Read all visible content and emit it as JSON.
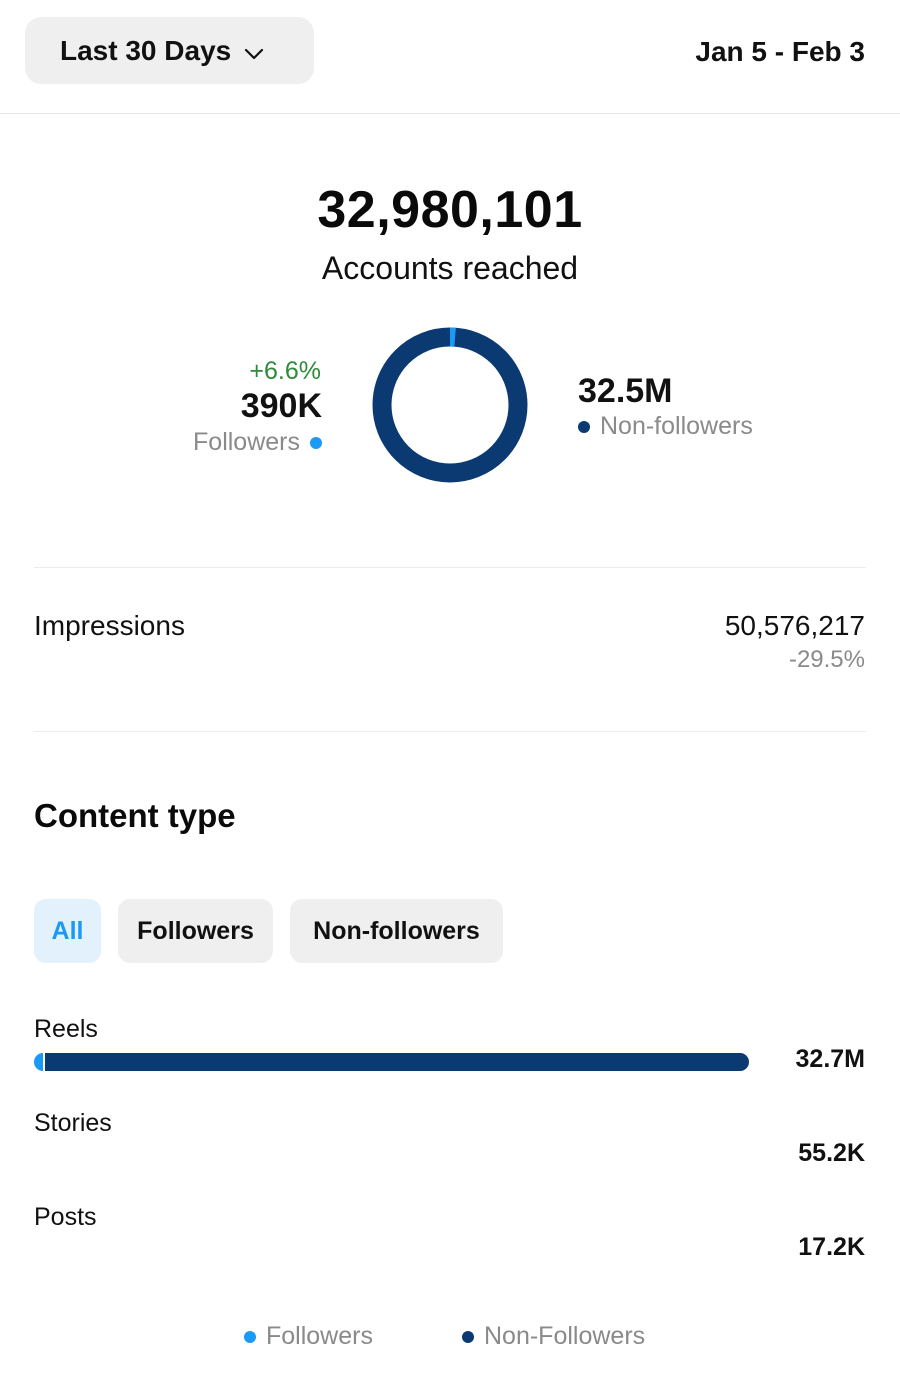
{
  "header": {
    "range_label": "Last 30 Days",
    "date_span": "Jan 5 - Feb 3"
  },
  "reach": {
    "total": "32,980,101",
    "label": "Accounts reached",
    "followers": {
      "change": "+6.6%",
      "value": "390K",
      "label": "Followers",
      "color": "#1b9af5"
    },
    "non_followers": {
      "value": "32.5M",
      "label": "Non-followers",
      "color": "#0b3a73"
    },
    "followers_share": 0.012
  },
  "impressions": {
    "label": "Impressions",
    "value": "50,576,217",
    "change": "-29.5%"
  },
  "content_type": {
    "title": "Content type",
    "filters": [
      "All",
      "Followers",
      "Non-followers"
    ],
    "active_filter": "All",
    "rows": [
      {
        "label": "Reels",
        "value": "32.7M",
        "fraction": 1.0,
        "followers_fraction": 0.012
      },
      {
        "label": "Stories",
        "value": "55.2K"
      },
      {
        "label": "Posts",
        "value": "17.2K"
      }
    ]
  },
  "legend": {
    "followers": "Followers",
    "non_followers": "Non-Followers"
  },
  "colors": {
    "followers": "#1b9af5",
    "non_followers": "#0b3a73",
    "positive": "#2e8b3a",
    "muted": "#8a8a8a"
  }
}
